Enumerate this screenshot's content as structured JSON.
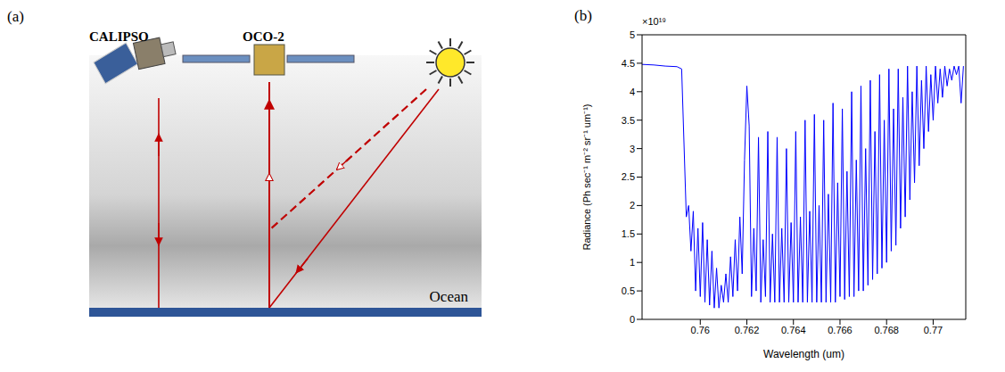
{
  "diagram": {
    "panel_label": "(a)",
    "labels": {
      "lidar": "CALIPSO",
      "spectrometer": "OCO-2",
      "surface": "Ocean"
    }
  },
  "chart_data": {
    "type": "line",
    "panel_label": "(b)",
    "xlabel": "Wavelength (um)",
    "ylabel": "Radiance (Ph sec⁻¹ m⁻² sr⁻¹ um⁻¹)",
    "y_scale_label": "×10¹⁹",
    "color": "#0000ff",
    "grid": false,
    "xlim": [
      0.7575,
      0.7714
    ],
    "xticks": [
      0.76,
      0.762,
      0.764,
      0.766,
      0.768,
      0.77
    ],
    "ylim": [
      0,
      5
    ],
    "yticks": [
      0,
      0.5,
      1,
      1.5,
      2,
      2.5,
      3,
      3.5,
      4,
      4.5,
      5
    ],
    "x": [
      0.7575,
      0.758,
      0.7585,
      0.759,
      0.7592,
      0.7594,
      0.7595,
      0.7596,
      0.7597,
      0.7598,
      0.7599,
      0.76,
      0.7601,
      0.7602,
      0.7603,
      0.7604,
      0.7605,
      0.7606,
      0.7607,
      0.7608,
      0.7609,
      0.761,
      0.7611,
      0.7612,
      0.7613,
      0.7614,
      0.7615,
      0.7616,
      0.7617,
      0.7618,
      0.7619,
      0.762,
      0.7621,
      0.7622,
      0.7623,
      0.7624,
      0.7625,
      0.7626,
      0.7627,
      0.7628,
      0.7629,
      0.763,
      0.7631,
      0.7632,
      0.7633,
      0.7634,
      0.7635,
      0.7636,
      0.7637,
      0.7638,
      0.7639,
      0.764,
      0.7641,
      0.7642,
      0.7643,
      0.7644,
      0.7645,
      0.7646,
      0.7647,
      0.7648,
      0.7649,
      0.765,
      0.7651,
      0.7652,
      0.7653,
      0.7654,
      0.7655,
      0.7656,
      0.7657,
      0.7658,
      0.7659,
      0.766,
      0.7661,
      0.7662,
      0.7663,
      0.7664,
      0.7665,
      0.7666,
      0.7667,
      0.7668,
      0.7669,
      0.767,
      0.7671,
      0.7672,
      0.7673,
      0.7674,
      0.7675,
      0.7676,
      0.7677,
      0.7678,
      0.7679,
      0.768,
      0.7681,
      0.7682,
      0.7683,
      0.7684,
      0.7685,
      0.7686,
      0.7687,
      0.7688,
      0.7689,
      0.769,
      0.7691,
      0.7692,
      0.7693,
      0.7694,
      0.7695,
      0.7696,
      0.7697,
      0.7698,
      0.7699,
      0.77,
      0.7701,
      0.7702,
      0.7703,
      0.7704,
      0.7705,
      0.7706,
      0.7707,
      0.7708,
      0.7709,
      0.771,
      0.7711,
      0.7712,
      0.7713
    ],
    "values": [
      4.48,
      4.47,
      4.45,
      4.44,
      4.4,
      1.8,
      2.0,
      1.2,
      1.9,
      0.5,
      1.6,
      0.4,
      1.7,
      0.3,
      1.4,
      0.25,
      1.2,
      0.2,
      0.9,
      0.2,
      0.6,
      0.3,
      0.8,
      0.3,
      1.1,
      0.4,
      1.4,
      0.5,
      1.8,
      0.8,
      2.8,
      4.1,
      3.4,
      0.4,
      1.6,
      0.5,
      3.2,
      0.3,
      1.4,
      0.4,
      3.3,
      0.3,
      1.5,
      0.3,
      3.2,
      0.3,
      1.6,
      0.3,
      3.0,
      0.3,
      1.7,
      0.3,
      3.3,
      0.3,
      1.8,
      0.3,
      3.5,
      0.3,
      1.9,
      0.3,
      3.6,
      0.3,
      2.0,
      0.3,
      3.5,
      0.3,
      2.2,
      0.3,
      3.8,
      0.3,
      2.4,
      0.4,
      3.7,
      0.35,
      2.6,
      0.4,
      4.0,
      0.4,
      2.8,
      0.5,
      4.1,
      0.5,
      3.0,
      0.6,
      4.2,
      0.7,
      3.3,
      0.8,
      4.3,
      0.9,
      3.5,
      1.0,
      4.4,
      1.2,
      3.7,
      1.3,
      4.4,
      1.6,
      3.9,
      1.8,
      4.45,
      2.1,
      4.0,
      2.4,
      4.45,
      2.7,
      4.2,
      3.0,
      4.45,
      3.3,
      4.3,
      3.5,
      4.45,
      3.8,
      4.4,
      3.9,
      4.45,
      4.1,
      4.4,
      4.2,
      4.45,
      4.3,
      4.45,
      3.8,
      4.45
    ]
  }
}
